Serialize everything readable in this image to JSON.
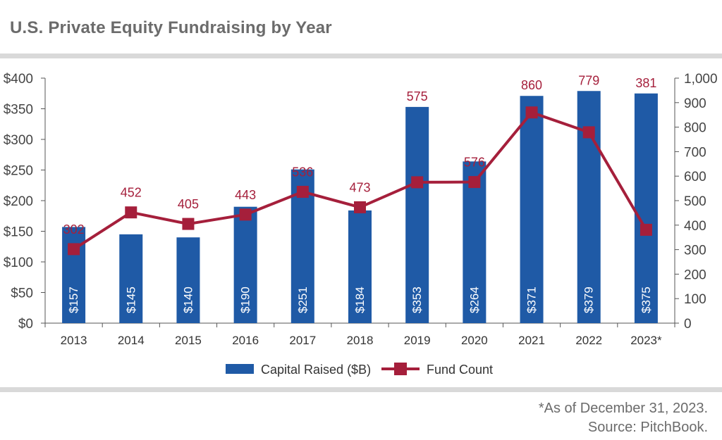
{
  "title": "U.S. Private Equity Fundraising by Year",
  "footnote": "*As of December 31, 2023.",
  "source": "Source: PitchBook.",
  "chart_data": {
    "type": "bar",
    "categories": [
      "2013",
      "2014",
      "2015",
      "2016",
      "2017",
      "2018",
      "2019",
      "2020",
      "2021",
      "2022",
      "2023*"
    ],
    "series": [
      {
        "name": "Capital Raised ($B)",
        "type": "bar",
        "axis": "left",
        "values": [
          157,
          145,
          140,
          190,
          251,
          184,
          353,
          264,
          371,
          379,
          375
        ],
        "labels": [
          "$157",
          "$145",
          "$140",
          "$190",
          "$251",
          "$184",
          "$353",
          "$264",
          "$371",
          "$379",
          "$375"
        ],
        "color": "#1f5aa6"
      },
      {
        "name": "Fund Count",
        "type": "line",
        "axis": "right",
        "values": [
          302,
          452,
          405,
          443,
          536,
          473,
          575,
          576,
          860,
          779,
          381
        ],
        "labels": [
          "302",
          "452",
          "405",
          "443",
          "536",
          "473",
          "575",
          "576",
          "860",
          "779",
          "381"
        ],
        "color": "#a51f3b"
      }
    ],
    "y_left": {
      "min": 0,
      "max": 400,
      "ticks": [
        "$0",
        "$50",
        "$100",
        "$150",
        "$200",
        "$250",
        "$300",
        "$350",
        "$400"
      ]
    },
    "y_right": {
      "min": 0,
      "max": 1000,
      "ticks": [
        "0",
        "100",
        "200",
        "300",
        "400",
        "500",
        "600",
        "700",
        "800",
        "900",
        "1,000"
      ]
    },
    "grid": false,
    "legend": "bottom"
  }
}
